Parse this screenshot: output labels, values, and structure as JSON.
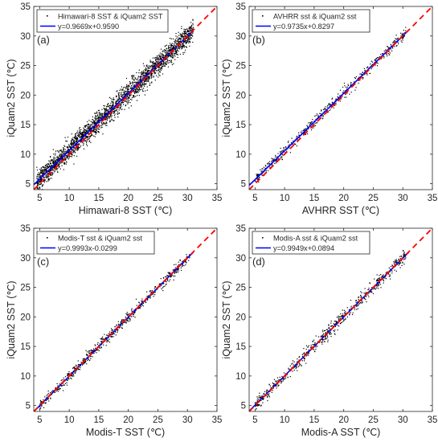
{
  "figure": {
    "colors": {
      "points": "#000000",
      "fit_line": "#0000ff",
      "identity_line": "#ff0000",
      "axes": "#262626",
      "background": "#ffffff"
    }
  },
  "chart_data": [
    {
      "type": "scatter",
      "panel_label": "(a)",
      "xlabel": "Himawari-8 SST (℃)",
      "ylabel": "iQuam2 SST (℃)",
      "xlim": [
        4,
        35
      ],
      "ylim": [
        4,
        35
      ],
      "xticks": [
        5,
        10,
        15,
        20,
        25,
        30,
        35
      ],
      "yticks": [
        5,
        10,
        15,
        20,
        25,
        30,
        35
      ],
      "grid": false,
      "legend_position": "top-left",
      "series": [
        {
          "name": "Himawari-8 SST & iQuam2 SST",
          "kind": "points",
          "color": "#000000",
          "x_range": [
            4.5,
            31
          ],
          "spread": 0.9,
          "density": "very dense"
        },
        {
          "name": "y=0.9669x+0.9590",
          "kind": "fit",
          "color": "#0000ff",
          "slope": 0.9669,
          "intercept": 0.959,
          "x_range": [
            4,
            31
          ]
        },
        {
          "kind": "identity",
          "color": "#ff0000",
          "style": "dashed",
          "slope": 1,
          "intercept": 0,
          "x_range": [
            4,
            35
          ]
        }
      ]
    },
    {
      "type": "scatter",
      "panel_label": "(b)",
      "xlabel": "AVHRR SST (℃)",
      "ylabel": "iQuam2 SST (℃)",
      "xlim": [
        4,
        35
      ],
      "ylim": [
        4,
        35
      ],
      "xticks": [
        5,
        10,
        15,
        20,
        25,
        30,
        35
      ],
      "yticks": [
        5,
        10,
        15,
        20,
        25,
        30,
        35
      ],
      "grid": false,
      "legend_position": "top-left",
      "series": [
        {
          "name": "AVHRR sst & iQuam2 sst",
          "kind": "points",
          "color": "#000000",
          "x_range": [
            5,
            30.5
          ],
          "spread": 0.45,
          "density": "sparse"
        },
        {
          "name": "y=0.9735x+0.8297",
          "kind": "fit",
          "color": "#0000ff",
          "slope": 0.9735,
          "intercept": 0.8297,
          "x_range": [
            4,
            31
          ]
        },
        {
          "kind": "identity",
          "color": "#ff0000",
          "style": "dashed",
          "slope": 1,
          "intercept": 0,
          "x_range": [
            4,
            35
          ]
        }
      ]
    },
    {
      "type": "scatter",
      "panel_label": "(c)",
      "xlabel": "Modis-T SST (℃)",
      "ylabel": "iQuam2 SST (℃)",
      "xlim": [
        4,
        35
      ],
      "ylim": [
        4,
        35
      ],
      "xticks": [
        5,
        10,
        15,
        20,
        25,
        30,
        35
      ],
      "yticks": [
        5,
        10,
        15,
        20,
        25,
        30,
        35
      ],
      "grid": false,
      "legend_position": "top-left",
      "series": [
        {
          "name": "Modis-T sst & iQuam2 sst",
          "kind": "points",
          "color": "#000000",
          "x_range": [
            5,
            30.5
          ],
          "spread": 0.45,
          "density": "medium"
        },
        {
          "name": "y=0.9993x-0.0299",
          "kind": "fit",
          "color": "#0000ff",
          "slope": 0.9993,
          "intercept": -0.0299,
          "x_range": [
            4,
            31
          ]
        },
        {
          "kind": "identity",
          "color": "#ff0000",
          "style": "dashed",
          "slope": 1,
          "intercept": 0,
          "x_range": [
            4,
            35
          ]
        }
      ]
    },
    {
      "type": "scatter",
      "panel_label": "(d)",
      "xlabel": "Modis-A SST (℃)",
      "ylabel": "iQuam2 SST (℃)",
      "xlim": [
        4,
        35
      ],
      "ylim": [
        4,
        35
      ],
      "xticks": [
        5,
        10,
        15,
        20,
        25,
        30,
        35
      ],
      "yticks": [
        5,
        10,
        15,
        20,
        25,
        30,
        35
      ],
      "grid": false,
      "legend_position": "top-left",
      "series": [
        {
          "name": "Modis-A sst & iQuam2 sst",
          "kind": "points",
          "color": "#000000",
          "x_range": [
            5,
            30.5
          ],
          "spread": 0.55,
          "density": "medium"
        },
        {
          "name": "y=0.9949x+0.0894",
          "kind": "fit",
          "color": "#0000ff",
          "slope": 0.9949,
          "intercept": 0.0894,
          "x_range": [
            4,
            31
          ]
        },
        {
          "kind": "identity",
          "color": "#ff0000",
          "style": "dashed",
          "slope": 1,
          "intercept": 0,
          "x_range": [
            4,
            35
          ]
        }
      ]
    }
  ]
}
